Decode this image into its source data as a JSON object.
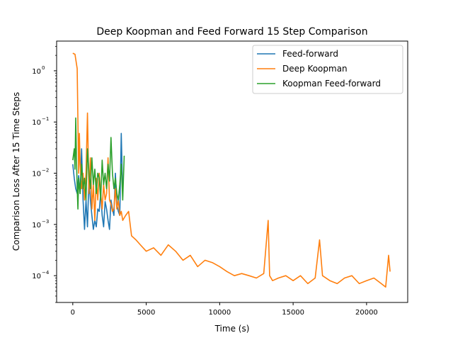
{
  "chart_data": {
    "type": "line",
    "title": "Deep Koopman and Feed Forward 15 Step Comparison",
    "xlabel": "Time (s)",
    "ylabel": "Comparison Loss After 15 Time Steps",
    "xlim": [
      -1100,
      22800
    ],
    "ylim": [
      3e-05,
      3.8
    ],
    "yscale": "log",
    "xticks": [
      0,
      5000,
      10000,
      15000,
      20000
    ],
    "xtick_labels": [
      "0",
      "5000",
      "10000",
      "15000",
      "20000"
    ],
    "yticks": [
      0.0001,
      0.001,
      0.01,
      0.1,
      1
    ],
    "ytick_labels": [
      "10",
      "10",
      "10",
      "10",
      "10"
    ],
    "ytick_exponents": [
      "−4",
      "−3",
      "−2",
      "−1",
      "0"
    ],
    "grid": false,
    "legend_position": "top-right",
    "series": [
      {
        "name": "Feed-forward",
        "color": "#1f77b4",
        "x": [
          0,
          100,
          200,
          300,
          400,
          500,
          600,
          700,
          800,
          900,
          1000,
          1100,
          1200,
          1300,
          1400,
          1500,
          1600,
          1700,
          1800,
          1900,
          2000,
          2100,
          2200,
          2300,
          2400,
          2500,
          2600,
          2700,
          2800,
          2900,
          3000,
          3100,
          3200,
          3300,
          3400
        ],
        "y": [
          0.015,
          0.008,
          0.005,
          0.004,
          0.009,
          0.004,
          0.03,
          0.003,
          0.0008,
          0.003,
          0.0009,
          0.008,
          0.003,
          0.0015,
          0.0008,
          0.0012,
          0.0009,
          0.002,
          0.0018,
          0.004,
          0.0015,
          0.0009,
          0.0028,
          0.002,
          0.0012,
          0.0008,
          0.003,
          0.002,
          0.0015,
          0.01,
          0.0025,
          0.0018,
          0.0015,
          0.06,
          0.0035
        ]
      },
      {
        "name": "Deep Koopman",
        "color": "#ff7f0e",
        "x": [
          0,
          150,
          300,
          350,
          400,
          450,
          500,
          600,
          700,
          800,
          900,
          1000,
          1100,
          1200,
          1300,
          1400,
          1500,
          1600,
          1700,
          1800,
          1900,
          2000,
          2100,
          2200,
          2300,
          2400,
          2500,
          2600,
          2700,
          2800,
          2900,
          3000,
          3100,
          3200,
          3300,
          3400,
          3600,
          3800,
          4000,
          4300,
          4600,
          5000,
          5500,
          6000,
          6500,
          7000,
          7500,
          8000,
          8500,
          9000,
          9500,
          10000,
          10500,
          11000,
          11500,
          12000,
          12500,
          13000,
          13300,
          13400,
          13600,
          14000,
          14500,
          15000,
          15500,
          16000,
          16500,
          16800,
          17000,
          17500,
          18000,
          18500,
          19000,
          19500,
          20000,
          20500,
          21000,
          21300,
          21500,
          21600
        ],
        "y": [
          2.2,
          2.1,
          1.1,
          0.1,
          0.01,
          0.06,
          0.015,
          0.005,
          0.01,
          0.003,
          0.01,
          0.15,
          0.004,
          0.02,
          0.002,
          0.006,
          0.0012,
          0.008,
          0.003,
          0.01,
          0.004,
          0.002,
          0.006,
          0.003,
          0.004,
          0.02,
          0.003,
          0.0025,
          0.0018,
          0.002,
          0.005,
          0.002,
          0.003,
          0.0015,
          0.0018,
          0.0012,
          0.0015,
          0.0018,
          0.0006,
          0.0005,
          0.0004,
          0.0003,
          0.00035,
          0.00025,
          0.0004,
          0.0003,
          0.0002,
          0.00025,
          0.00015,
          0.0002,
          0.00018,
          0.00015,
          0.00012,
          0.0001,
          0.00011,
          0.0001,
          9e-05,
          0.00011,
          0.0012,
          0.0001,
          8e-05,
          9e-05,
          0.0001,
          8e-05,
          0.0001,
          7e-05,
          9e-05,
          0.0005,
          0.0001,
          8e-05,
          7e-05,
          9e-05,
          0.0001,
          7e-05,
          8e-05,
          9e-05,
          7e-05,
          6e-05,
          0.00025,
          0.00012
        ]
      },
      {
        "name": "Koopman Feed-forward",
        "color": "#2ca02c",
        "x": [
          0,
          100,
          150,
          200,
          250,
          300,
          350,
          400,
          500,
          600,
          700,
          800,
          900,
          1000,
          1100,
          1200,
          1300,
          1400,
          1500,
          1600,
          1700,
          1800,
          1900,
          2000,
          2100,
          2200,
          2300,
          2400,
          2500,
          2600,
          2700,
          2800,
          2900,
          3000,
          3100,
          3200,
          3300,
          3400,
          3500
        ],
        "y": [
          0.018,
          0.03,
          0.012,
          0.12,
          0.02,
          0.005,
          0.002,
          0.008,
          0.004,
          0.015,
          0.005,
          0.008,
          0.003,
          0.03,
          0.01,
          0.005,
          0.02,
          0.006,
          0.012,
          0.004,
          0.01,
          0.008,
          0.003,
          0.018,
          0.006,
          0.01,
          0.005,
          0.015,
          0.007,
          0.05,
          0.01,
          0.005,
          0.008,
          0.004,
          0.003,
          0.006,
          0.015,
          0.003,
          0.022
        ]
      }
    ]
  }
}
